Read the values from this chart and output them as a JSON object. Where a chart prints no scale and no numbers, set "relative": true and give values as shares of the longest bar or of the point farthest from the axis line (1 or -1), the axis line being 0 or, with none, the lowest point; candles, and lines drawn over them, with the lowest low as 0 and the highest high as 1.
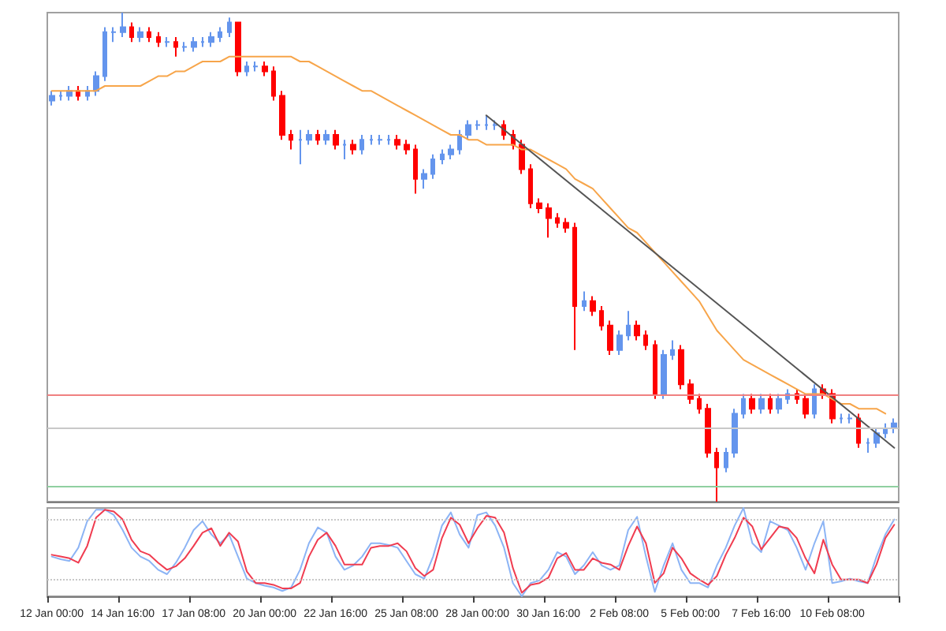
{
  "chart_data": [
    {
      "type": "candlestick",
      "relative": true,
      "tick_labels": "x",
      "marker": "none",
      "categories": [
        "12 Jan 00:00",
        null,
        null,
        null,
        null,
        null,
        null,
        null,
        "14 Jan 16:00",
        null,
        null,
        null,
        null,
        null,
        null,
        null,
        "17 Jan 08:00",
        null,
        null,
        null,
        null,
        null,
        null,
        null,
        "20 Jan 00:00",
        null,
        null,
        null,
        null,
        null,
        null,
        null,
        "22 Jan 16:00",
        null,
        null,
        null,
        null,
        null,
        null,
        null,
        "25 Jan 08:00",
        null,
        null,
        null,
        null,
        null,
        null,
        null,
        "28 Jan 00:00",
        null,
        null,
        null,
        null,
        null,
        null,
        null,
        "30 Jan 16:00",
        null,
        null,
        null,
        null,
        null,
        null,
        null,
        "2 Feb 08:00",
        null,
        null,
        null,
        null,
        null,
        null,
        null,
        "5 Feb 00:00",
        null,
        null,
        null,
        null,
        null,
        null,
        null,
        "7 Feb 16:00",
        null,
        null,
        null,
        null,
        null,
        null,
        null,
        "10 Feb 08:00",
        null,
        null,
        null,
        null,
        null,
        null,
        null
      ],
      "ohlc": [
        [
          0.82,
          0.84,
          0.81,
          0.83
        ],
        [
          0.83,
          0.84,
          0.82,
          0.83
        ],
        [
          0.83,
          0.85,
          0.82,
          0.84
        ],
        [
          0.84,
          0.85,
          0.82,
          0.83
        ],
        [
          0.83,
          0.85,
          0.82,
          0.84
        ],
        [
          0.84,
          0.88,
          0.83,
          0.87
        ],
        [
          0.87,
          0.97,
          0.86,
          0.96
        ],
        [
          0.96,
          0.97,
          0.94,
          0.96
        ],
        [
          0.96,
          1.0,
          0.95,
          0.97
        ],
        [
          0.97,
          0.98,
          0.94,
          0.95
        ],
        [
          0.95,
          0.97,
          0.94,
          0.96
        ],
        [
          0.96,
          0.97,
          0.94,
          0.95
        ],
        [
          0.95,
          0.96,
          0.93,
          0.94
        ],
        [
          0.94,
          0.95,
          0.93,
          0.94
        ],
        [
          0.94,
          0.95,
          0.91,
          0.93
        ],
        [
          0.93,
          0.94,
          0.92,
          0.93
        ],
        [
          0.93,
          0.95,
          0.92,
          0.94
        ],
        [
          0.94,
          0.95,
          0.93,
          0.94
        ],
        [
          0.94,
          0.96,
          0.93,
          0.95
        ],
        [
          0.95,
          0.97,
          0.94,
          0.96
        ],
        [
          0.96,
          0.99,
          0.95,
          0.98
        ],
        [
          0.98,
          0.98,
          0.87,
          0.88
        ],
        [
          0.88,
          0.9,
          0.87,
          0.89
        ],
        [
          0.89,
          0.9,
          0.88,
          0.89
        ],
        [
          0.89,
          0.9,
          0.87,
          0.88
        ],
        [
          0.88,
          0.89,
          0.82,
          0.83
        ],
        [
          0.83,
          0.84,
          0.74,
          0.75
        ],
        [
          0.75,
          0.76,
          0.72,
          0.74
        ],
        [
          0.74,
          0.76,
          0.69,
          0.74
        ],
        [
          0.74,
          0.76,
          0.73,
          0.75
        ],
        [
          0.75,
          0.76,
          0.73,
          0.74
        ],
        [
          0.74,
          0.76,
          0.73,
          0.75
        ],
        [
          0.75,
          0.76,
          0.72,
          0.73
        ],
        [
          0.73,
          0.74,
          0.7,
          0.73
        ],
        [
          0.73,
          0.74,
          0.71,
          0.72
        ],
        [
          0.72,
          0.75,
          0.71,
          0.74
        ],
        [
          0.74,
          0.75,
          0.73,
          0.74
        ],
        [
          0.74,
          0.75,
          0.73,
          0.74
        ],
        [
          0.74,
          0.75,
          0.73,
          0.74
        ],
        [
          0.74,
          0.75,
          0.72,
          0.73
        ],
        [
          0.73,
          0.74,
          0.71,
          0.72
        ],
        [
          0.72,
          0.73,
          0.63,
          0.66
        ],
        [
          0.66,
          0.68,
          0.64,
          0.67
        ],
        [
          0.67,
          0.71,
          0.66,
          0.7
        ],
        [
          0.7,
          0.72,
          0.69,
          0.71
        ],
        [
          0.71,
          0.73,
          0.7,
          0.72
        ],
        [
          0.72,
          0.76,
          0.71,
          0.75
        ],
        [
          0.75,
          0.78,
          0.74,
          0.77
        ],
        [
          0.77,
          0.78,
          0.76,
          0.77
        ],
        [
          0.77,
          0.79,
          0.76,
          0.77
        ],
        [
          0.77,
          0.78,
          0.76,
          0.77
        ],
        [
          0.77,
          0.78,
          0.74,
          0.75
        ],
        [
          0.75,
          0.76,
          0.72,
          0.73
        ],
        [
          0.73,
          0.74,
          0.67,
          0.68
        ],
        [
          0.68,
          0.69,
          0.6,
          0.61
        ],
        [
          0.61,
          0.62,
          0.59,
          0.6
        ],
        [
          0.6,
          0.61,
          0.54,
          0.58
        ],
        [
          0.58,
          0.59,
          0.56,
          0.57
        ],
        [
          0.57,
          0.58,
          0.55,
          0.56
        ],
        [
          0.56,
          0.57,
          0.31,
          0.4
        ],
        [
          0.4,
          0.43,
          0.39,
          0.41
        ],
        [
          0.41,
          0.42,
          0.38,
          0.39
        ],
        [
          0.39,
          0.4,
          0.35,
          0.36
        ],
        [
          0.36,
          0.37,
          0.3,
          0.31
        ],
        [
          0.31,
          0.35,
          0.3,
          0.34
        ],
        [
          0.34,
          0.39,
          0.33,
          0.36
        ],
        [
          0.36,
          0.37,
          0.33,
          0.34
        ],
        [
          0.34,
          0.35,
          0.31,
          0.32
        ],
        [
          0.32,
          0.33,
          0.21,
          0.22
        ],
        [
          0.22,
          0.31,
          0.21,
          0.3
        ],
        [
          0.3,
          0.33,
          0.29,
          0.31
        ],
        [
          0.31,
          0.32,
          0.23,
          0.24
        ],
        [
          0.24,
          0.25,
          0.2,
          0.21
        ],
        [
          0.21,
          0.22,
          0.18,
          0.19
        ],
        [
          0.19,
          0.2,
          0.09,
          0.1
        ],
        [
          0.1,
          0.11,
          0.0,
          0.07
        ],
        [
          0.07,
          0.11,
          0.06,
          0.1
        ],
        [
          0.1,
          0.19,
          0.09,
          0.18
        ],
        [
          0.18,
          0.22,
          0.17,
          0.21
        ],
        [
          0.21,
          0.22,
          0.18,
          0.19
        ],
        [
          0.19,
          0.22,
          0.18,
          0.21
        ],
        [
          0.21,
          0.22,
          0.18,
          0.19
        ],
        [
          0.19,
          0.22,
          0.18,
          0.21
        ],
        [
          0.21,
          0.23,
          0.2,
          0.22
        ],
        [
          0.22,
          0.23,
          0.2,
          0.21
        ],
        [
          0.21,
          0.22,
          0.17,
          0.18
        ],
        [
          0.18,
          0.24,
          0.17,
          0.23
        ],
        [
          0.23,
          0.24,
          0.21,
          0.22
        ],
        [
          0.22,
          0.23,
          0.16,
          0.17
        ],
        [
          0.17,
          0.18,
          0.16,
          0.17
        ],
        [
          0.17,
          0.18,
          0.16,
          0.17
        ],
        [
          0.17,
          0.18,
          0.11,
          0.12
        ],
        [
          0.12,
          0.13,
          0.1,
          0.12
        ],
        [
          0.12,
          0.15,
          0.11,
          0.14
        ],
        [
          0.14,
          0.16,
          0.13,
          0.15
        ],
        [
          0.15,
          0.17,
          0.14,
          0.16
        ]
      ],
      "colors": [
        "#6495ed",
        "#6495ed",
        "#6495ed",
        "#ff0000",
        "#6495ed",
        "#6495ed",
        "#6495ed",
        "#6495ed",
        "#6495ed",
        "#ff0000",
        "#6495ed",
        "#ff0000",
        "#ff0000",
        "#6495ed",
        "#ff0000",
        "#6495ed",
        "#6495ed",
        "#6495ed",
        "#6495ed",
        "#6495ed",
        "#6495ed",
        "#ff0000",
        "#6495ed",
        "#6495ed",
        "#ff0000",
        "#ff0000",
        "#ff0000",
        "#ff0000",
        "#6495ed",
        "#6495ed",
        "#ff0000",
        "#6495ed",
        "#ff0000",
        "#6495ed",
        "#ff0000",
        "#6495ed",
        "#6495ed",
        "#6495ed",
        "#6495ed",
        "#ff0000",
        "#ff0000",
        "#ff0000",
        "#6495ed",
        "#6495ed",
        "#6495ed",
        "#6495ed",
        "#6495ed",
        "#6495ed",
        "#6495ed",
        "#6495ed",
        "#6495ed",
        "#ff0000",
        "#ff0000",
        "#ff0000",
        "#ff0000",
        "#ff0000",
        "#ff0000",
        "#ff0000",
        "#ff0000",
        "#ff0000",
        "#6495ed",
        "#ff0000",
        "#ff0000",
        "#ff0000",
        "#6495ed",
        "#6495ed",
        "#ff0000",
        "#ff0000",
        "#ff0000",
        "#6495ed",
        "#6495ed",
        "#ff0000",
        "#ff0000",
        "#ff0000",
        "#ff0000",
        "#ff0000",
        "#6495ed",
        "#6495ed",
        "#6495ed",
        "#ff0000",
        "#6495ed",
        "#ff0000",
        "#6495ed",
        "#6495ed",
        "#ff0000",
        "#ff0000",
        "#6495ed",
        "#ff0000",
        "#ff0000",
        "#6495ed",
        "#6495ed",
        "#ff0000",
        "#6495ed",
        "#6495ed",
        "#6495ed",
        "#6495ed"
      ],
      "series": [
        {
          "type": "line",
          "color": "#f7a54a",
          "values": [
            0.84,
            0.84,
            0.84,
            0.84,
            0.84,
            0.84,
            0.85,
            0.85,
            0.85,
            0.85,
            0.85,
            0.86,
            0.87,
            0.87,
            0.88,
            0.88,
            0.89,
            0.9,
            0.9,
            0.9,
            0.91,
            0.91,
            0.91,
            0.91,
            0.91,
            0.91,
            0.91,
            0.91,
            0.9,
            0.9,
            0.89,
            0.88,
            0.87,
            0.86,
            0.85,
            0.84,
            0.84,
            0.83,
            0.82,
            0.81,
            0.8,
            0.79,
            0.78,
            0.77,
            0.76,
            0.75,
            0.75,
            0.74,
            0.74,
            0.73,
            0.73,
            0.73,
            0.73,
            0.72,
            0.72,
            0.71,
            0.7,
            0.69,
            0.68,
            0.66,
            0.65,
            0.64,
            0.62,
            0.6,
            0.58,
            0.56,
            0.55,
            0.53,
            0.51,
            0.49,
            0.47,
            0.45,
            0.43,
            0.41,
            0.38,
            0.35,
            0.33,
            0.31,
            0.29,
            0.28,
            0.27,
            0.26,
            0.25,
            0.24,
            0.23,
            0.22,
            0.22,
            0.22,
            0.21,
            0.2,
            0.2,
            0.19,
            0.19,
            0.19,
            0.18,
            null
          ]
        },
        {
          "type": "line",
          "color": "#555555",
          "values": [
            null,
            null,
            null,
            null,
            null,
            null,
            null,
            null,
            null,
            null,
            null,
            null,
            null,
            null,
            null,
            null,
            null,
            null,
            null,
            null,
            null,
            null,
            null,
            null,
            null,
            null,
            null,
            null,
            null,
            null,
            null,
            null,
            null,
            null,
            null,
            null,
            null,
            null,
            null,
            null,
            null,
            null,
            null,
            null,
            null,
            null,
            null,
            null,
            null,
            0.79,
            null,
            null,
            null,
            null,
            null,
            null,
            null,
            null,
            null,
            null,
            null,
            null,
            null,
            null,
            null,
            null,
            null,
            null,
            null,
            null,
            null,
            null,
            null,
            null,
            null,
            null,
            null,
            null,
            null,
            null,
            null,
            null,
            null,
            null,
            null,
            null,
            null,
            null,
            null,
            null,
            null,
            null,
            null,
            null,
            null,
            0.11
          ]
        }
      ],
      "ref_lines": [
        {
          "axis": "y",
          "value": 0.22,
          "color": "#f08080"
        },
        {
          "axis": "y",
          "value": 0.15,
          "color": "#c8c8c8"
        },
        {
          "axis": "y",
          "value": 0.03,
          "color": "#90d0a0"
        }
      ]
    },
    {
      "type": "line",
      "relative": true,
      "tick_labels": false,
      "marker": "none",
      "categories": [
        null,
        null,
        null,
        null,
        null,
        null,
        null,
        null,
        null,
        null,
        null,
        null,
        null,
        null,
        null,
        null,
        null,
        null,
        null,
        null,
        null,
        null,
        null,
        null,
        null,
        null,
        null,
        null,
        null,
        null,
        null,
        null,
        null,
        null,
        null,
        null,
        null,
        null,
        null,
        null,
        null,
        null,
        null,
        null,
        null,
        null,
        null,
        null,
        null,
        null,
        null,
        null,
        null,
        null,
        null,
        null,
        null,
        null,
        null,
        null,
        null,
        null,
        null,
        null,
        null,
        null,
        null,
        null,
        null,
        null,
        null,
        null,
        null,
        null,
        null,
        null,
        null,
        null,
        null,
        null,
        null,
        null,
        null,
        null,
        null,
        null,
        null,
        null,
        null,
        null,
        null,
        null,
        null,
        null,
        null,
        null
      ],
      "series": [
        {
          "color": "#8cb4f5",
          "values": [
            0.45,
            0.42,
            0.4,
            0.55,
            0.85,
            0.98,
            0.98,
            0.92,
            0.75,
            0.55,
            0.45,
            0.4,
            0.3,
            0.25,
            0.38,
            0.55,
            0.75,
            0.85,
            0.7,
            0.6,
            0.7,
            0.45,
            0.2,
            0.15,
            0.12,
            0.1,
            0.06,
            0.1,
            0.3,
            0.6,
            0.78,
            0.72,
            0.45,
            0.3,
            0.35,
            0.45,
            0.6,
            0.6,
            0.58,
            0.55,
            0.4,
            0.25,
            0.2,
            0.45,
            0.8,
            0.95,
            0.7,
            0.55,
            0.92,
            0.95,
            0.8,
            0.55,
            0.15,
            0.0,
            0.15,
            0.18,
            0.3,
            0.5,
            0.45,
            0.25,
            0.35,
            0.5,
            0.35,
            0.3,
            0.35,
            0.75,
            0.9,
            0.45,
            0.05,
            0.35,
            0.6,
            0.3,
            0.15,
            0.15,
            0.1,
            0.35,
            0.55,
            0.8,
            1.0,
            0.6,
            0.5,
            0.85,
            0.8,
            0.75,
            0.55,
            0.3,
            0.6,
            0.85,
            0.15,
            0.17,
            0.2,
            0.17,
            0.15,
            0.45,
            0.7,
            0.87
          ]
        },
        {
          "color": "#f03c50",
          "values": [
            0.47,
            0.45,
            0.43,
            0.38,
            0.57,
            0.89,
            0.98,
            0.96,
            0.87,
            0.64,
            0.51,
            0.47,
            0.38,
            0.3,
            0.34,
            0.43,
            0.57,
            0.72,
            0.77,
            0.57,
            0.72,
            0.62,
            0.28,
            0.15,
            0.15,
            0.13,
            0.09,
            0.09,
            0.15,
            0.45,
            0.64,
            0.72,
            0.57,
            0.36,
            0.36,
            0.36,
            0.55,
            0.57,
            0.57,
            0.6,
            0.51,
            0.32,
            0.23,
            0.3,
            0.66,
            0.89,
            0.81,
            0.6,
            0.77,
            0.91,
            0.89,
            0.72,
            0.32,
            0.04,
            0.13,
            0.15,
            0.21,
            0.43,
            0.49,
            0.3,
            0.3,
            0.43,
            0.38,
            0.36,
            0.3,
            0.57,
            0.79,
            0.6,
            0.15,
            0.26,
            0.55,
            0.43,
            0.26,
            0.19,
            0.13,
            0.23,
            0.47,
            0.66,
            0.89,
            0.79,
            0.53,
            0.66,
            0.79,
            0.77,
            0.66,
            0.43,
            0.26,
            0.64,
            0.36,
            0.19,
            0.19,
            0.19,
            0.15,
            0.36,
            0.66,
            0.81
          ]
        }
      ],
      "ref_lines": [
        {
          "axis": "y",
          "value": 0.87,
          "color": "#c8c8c8",
          "line_style": "dotted"
        },
        {
          "axis": "y",
          "value": 0.19,
          "color": "#c8c8c8",
          "line_style": "dotted"
        }
      ]
    }
  ]
}
